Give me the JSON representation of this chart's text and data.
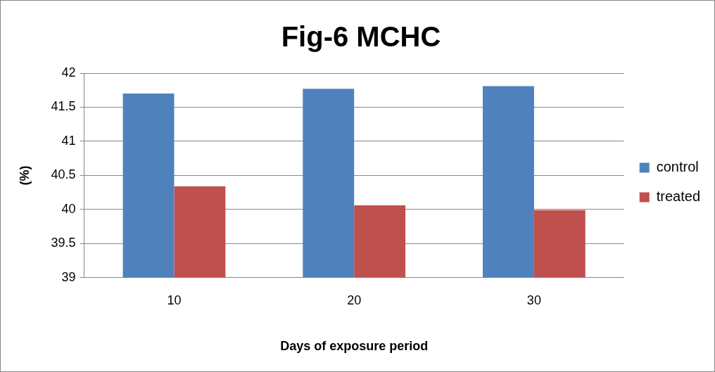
{
  "chart_data": {
    "type": "bar",
    "title": "Fig-6 MCHC",
    "xlabel": "Days of exposure period",
    "ylabel": "(%)",
    "categories": [
      "10",
      "20",
      "30"
    ],
    "series": [
      {
        "name": "control",
        "color": "#4f81bd",
        "values": [
          41.7,
          41.77,
          41.81
        ]
      },
      {
        "name": "treated",
        "color": "#c0504d",
        "values": [
          40.34,
          40.06,
          39.99
        ]
      }
    ],
    "ylim": [
      39,
      42
    ],
    "yticks": [
      39,
      39.5,
      40,
      40.5,
      41,
      41.5,
      42
    ],
    "grid": "y",
    "legend": "right"
  }
}
